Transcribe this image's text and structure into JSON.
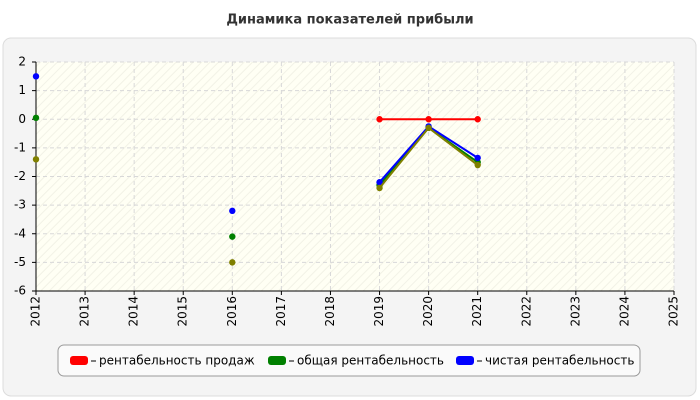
{
  "chart_data": {
    "type": "line",
    "title": "Динамика показателей прибыли",
    "x": [
      2012,
      2013,
      2014,
      2015,
      2016,
      2017,
      2018,
      2019,
      2020,
      2021,
      2022,
      2023,
      2024,
      2025
    ],
    "xlim": [
      2012,
      2025
    ],
    "ylim": [
      -6,
      2
    ],
    "yticks": [
      -6,
      -5,
      -4,
      -3,
      -2,
      -1,
      0,
      1,
      2
    ],
    "grid": true,
    "series": [
      {
        "name": "рентабельность продаж",
        "color": "#ff0000",
        "values": [
          null,
          null,
          null,
          null,
          null,
          null,
          null,
          0,
          0,
          0,
          null,
          null,
          null,
          null
        ]
      },
      {
        "name": "общая рентабельность",
        "color": "#008000",
        "values": [
          0.05,
          null,
          null,
          null,
          -4.1,
          null,
          null,
          -2.3,
          -0.3,
          -1.5,
          null,
          null,
          null,
          null
        ]
      },
      {
        "name": "чистая рентабельность",
        "color": "#0000ff",
        "values": [
          1.5,
          null,
          null,
          null,
          -3.2,
          null,
          null,
          -2.2,
          -0.25,
          -1.35,
          null,
          null,
          null,
          null
        ]
      },
      {
        "color": "#808000",
        "values": [
          -1.4,
          null,
          null,
          null,
          -5.0,
          null,
          null,
          -2.4,
          -0.3,
          -1.6,
          null,
          null,
          null,
          null
        ]
      }
    ],
    "legend": "bottom"
  }
}
